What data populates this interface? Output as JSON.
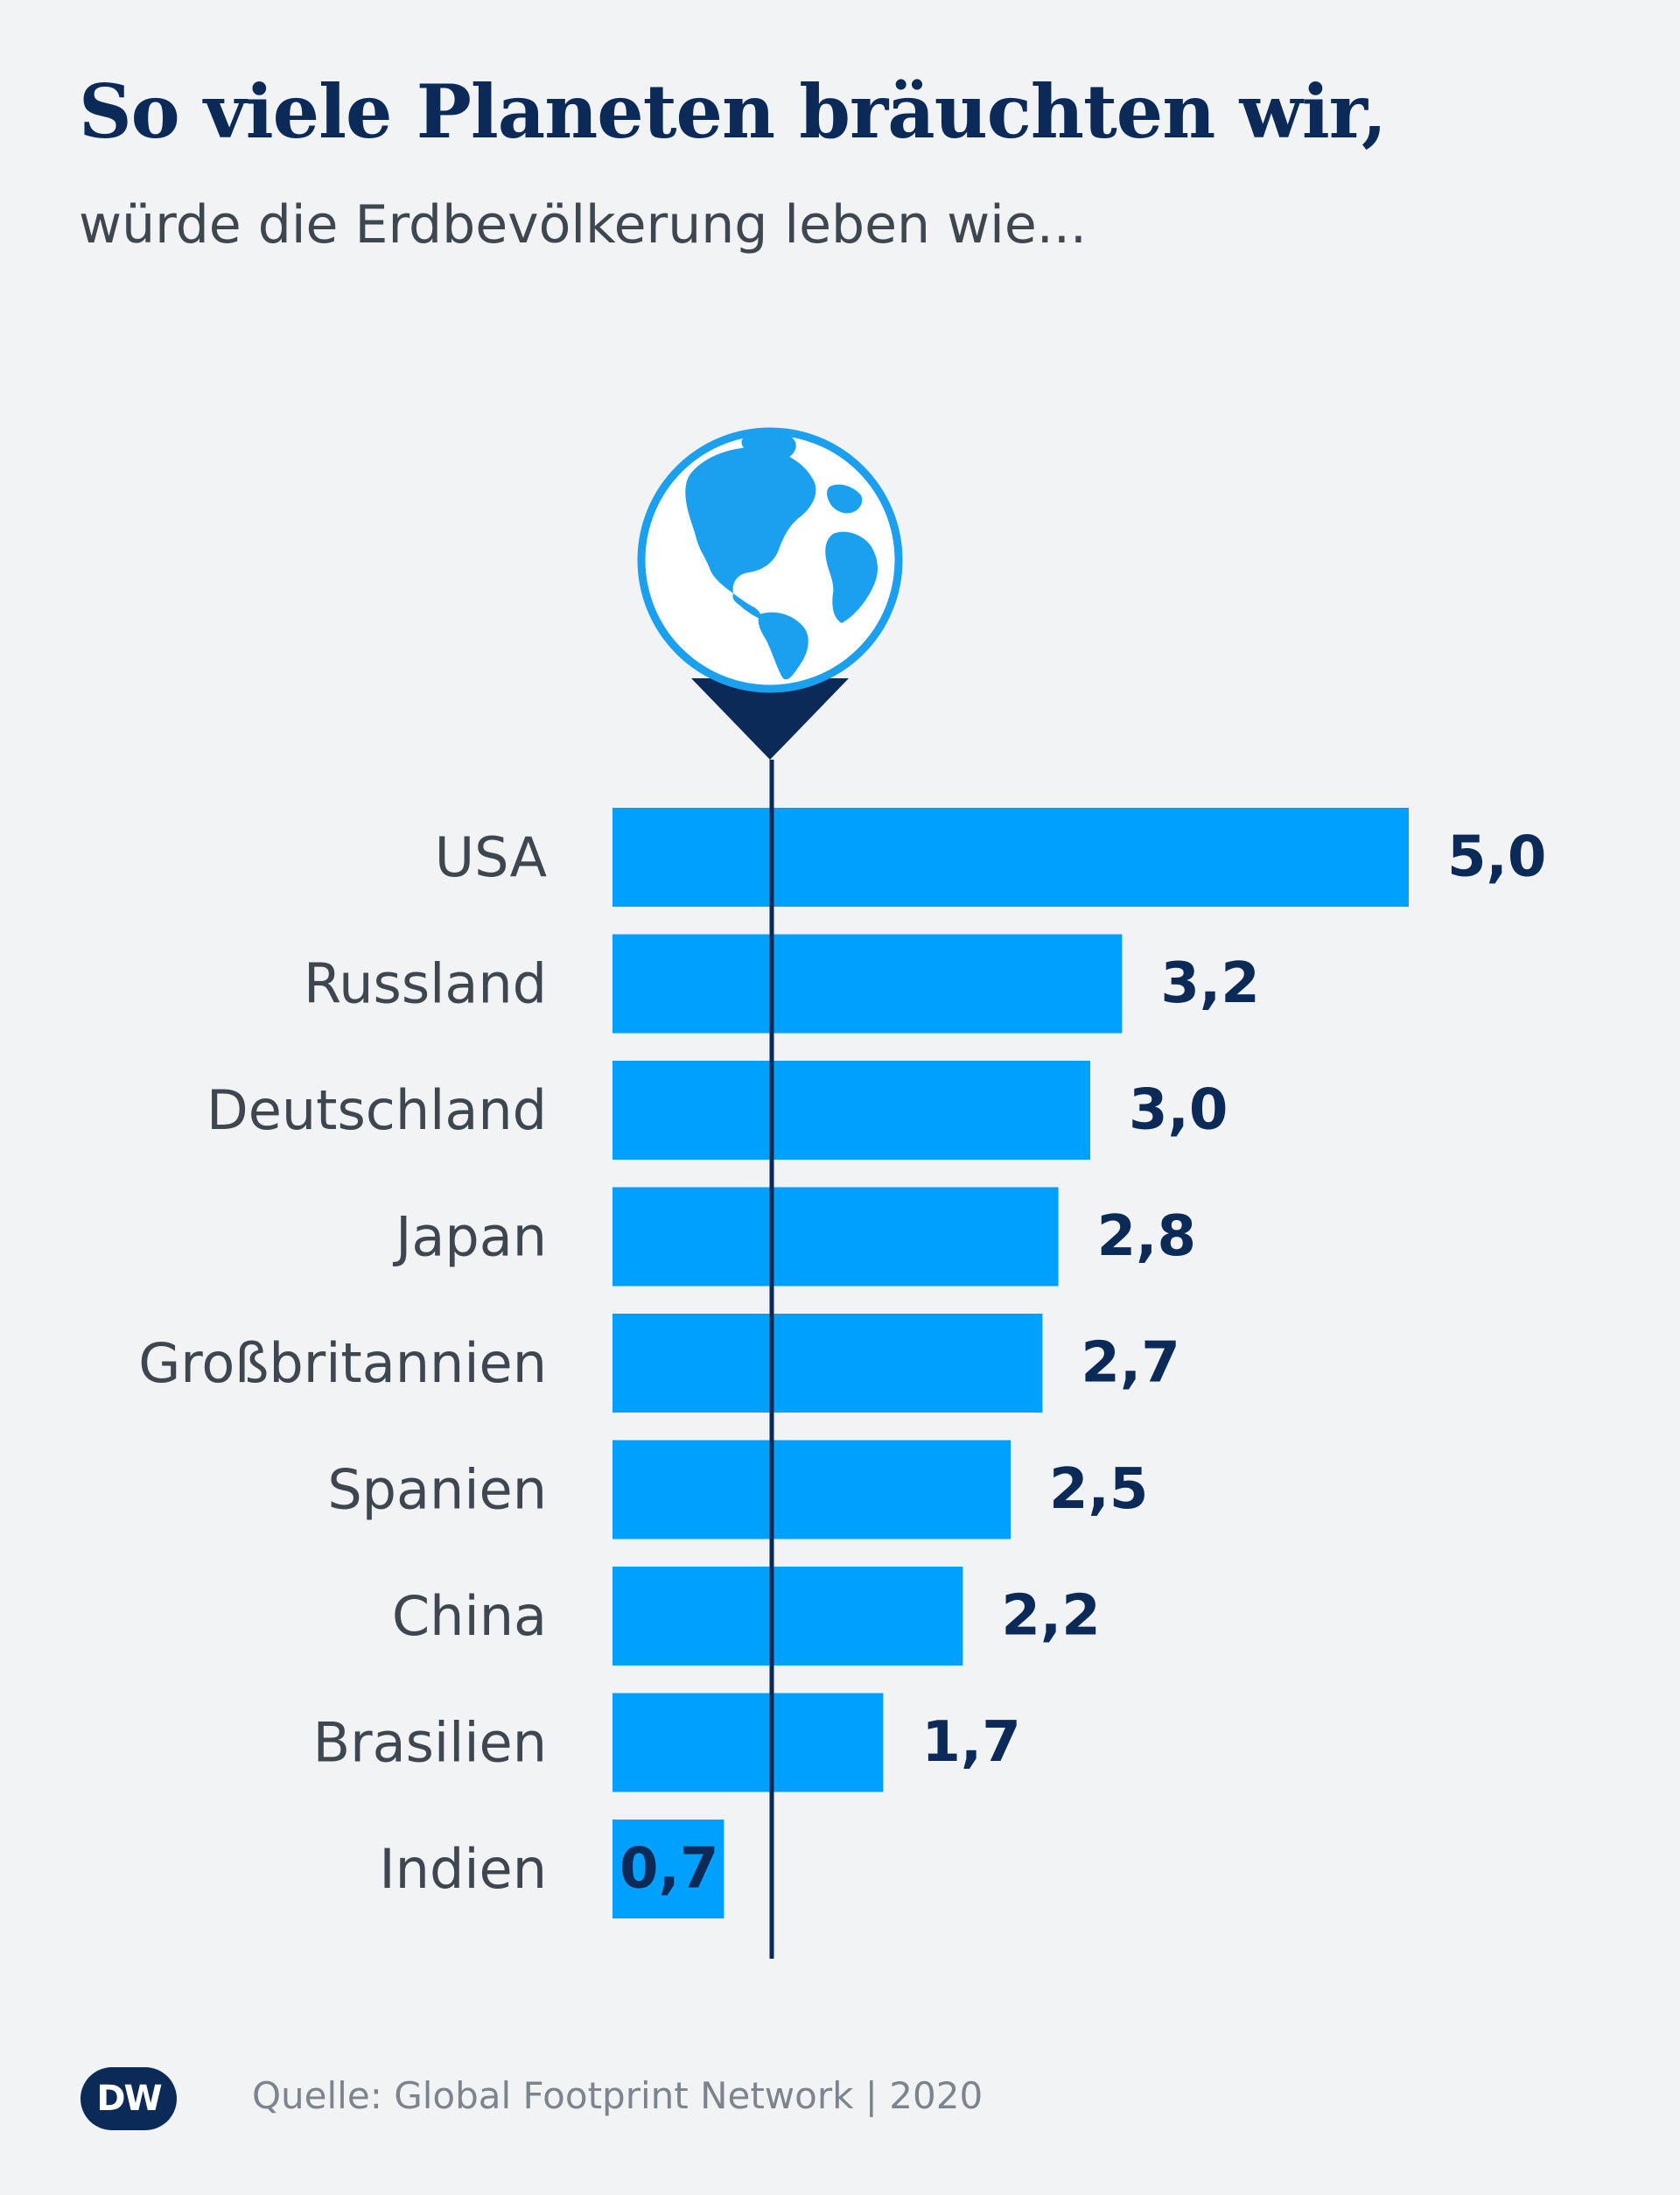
{
  "header": {
    "title": "So viele Planeten bräuchten wir,",
    "subtitle": "würde die Erdbevölkerung leben wie..."
  },
  "footer": {
    "logo": "DW",
    "source": "Quelle: Global Footprint Network | 2020"
  },
  "colors": {
    "bar": "#00a0ff",
    "text_dark": "#0b2a57",
    "label_gray": "#3e4650",
    "background": "#f2f3f5"
  },
  "icons": {
    "globe": "globe-pin-icon"
  },
  "chart_data": {
    "type": "bar",
    "orientation": "horizontal",
    "categories": [
      "USA",
      "Russland",
      "Deutschland",
      "Japan",
      "Großbritannien",
      "Spanien",
      "China",
      "Brasilien",
      "Indien"
    ],
    "values": [
      5.0,
      3.2,
      3.0,
      2.8,
      2.7,
      2.5,
      2.2,
      1.7,
      0.7
    ],
    "value_labels": [
      "5,0",
      "3,2",
      "3,0",
      "2,8",
      "2,7",
      "2,5",
      "2,2",
      "1,7",
      "0,7"
    ],
    "reference_line": 1,
    "xlim": [
      0,
      5
    ]
  }
}
